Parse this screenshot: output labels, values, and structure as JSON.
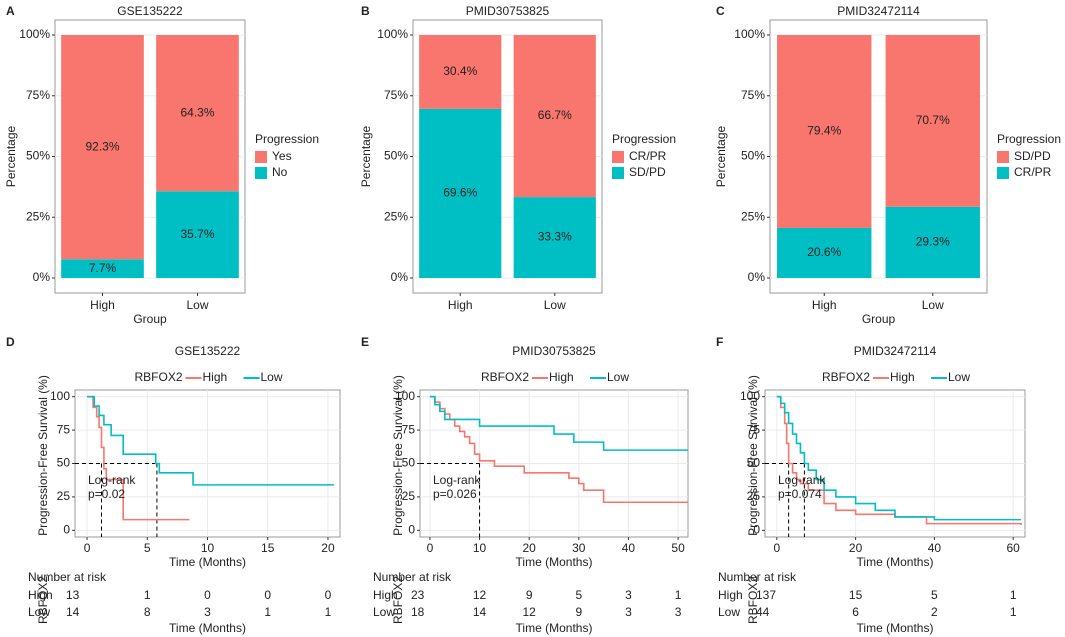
{
  "chart_data": [
    {
      "type": "bar",
      "panel": "A",
      "title": "GSE135222",
      "categories": [
        "High",
        "Low"
      ],
      "series": [
        {
          "name": "Yes",
          "color": "#F8766D",
          "values": [
            92.3,
            64.3
          ],
          "value_labels": [
            "92.3%",
            "64.3%"
          ]
        },
        {
          "name": "No",
          "color": "#00BFC4",
          "values": [
            7.7,
            35.7
          ],
          "value_labels": [
            "7.7%",
            "35.7%"
          ]
        }
      ],
      "legend_title": "Progression",
      "xlabel": "Group",
      "ylabel": "Percentage",
      "ylim": [
        0,
        100
      ],
      "yticks": [
        {
          "value": 0,
          "label": "0%"
        },
        {
          "value": 25,
          "label": "25%"
        },
        {
          "value": 50,
          "label": "50%"
        },
        {
          "value": 75,
          "label": "75%"
        },
        {
          "value": 100,
          "label": "100%"
        }
      ],
      "grid": true
    },
    {
      "type": "bar",
      "panel": "B",
      "title": "PMID30753825",
      "categories": [
        "High",
        "Low"
      ],
      "series": [
        {
          "name": "CR/PR",
          "color": "#F8766D",
          "values": [
            30.4,
            66.7
          ],
          "value_labels": [
            "30.4%",
            "66.7%"
          ]
        },
        {
          "name": "SD/PD",
          "color": "#00BFC4",
          "values": [
            69.6,
            33.3
          ],
          "value_labels": [
            "69.6%",
            "33.3%"
          ]
        }
      ],
      "legend_title": "Progression",
      "ylabel": "Percentage",
      "ylim": [
        0,
        100
      ],
      "yticks": [
        {
          "value": 0,
          "label": "0%"
        },
        {
          "value": 25,
          "label": "25%"
        },
        {
          "value": 50,
          "label": "50%"
        },
        {
          "value": 75,
          "label": "75%"
        },
        {
          "value": 100,
          "label": "100%"
        }
      ],
      "grid": true
    },
    {
      "type": "bar",
      "panel": "C",
      "title": "PMID32472114",
      "categories": [
        "High",
        "Low"
      ],
      "series": [
        {
          "name": "SD/PD",
          "color": "#F8766D",
          "values": [
            79.4,
            70.7
          ],
          "value_labels": [
            "79.4%",
            "70.7%"
          ]
        },
        {
          "name": "CR/PR",
          "color": "#00BFC4",
          "values": [
            20.6,
            29.3
          ],
          "value_labels": [
            "20.6%",
            "29.3%"
          ]
        }
      ],
      "legend_title": "Progression",
      "xlabel": "Group",
      "ylabel": "Percentage",
      "ylim": [
        0,
        100
      ],
      "yticks": [
        {
          "value": 0,
          "label": "0%"
        },
        {
          "value": 25,
          "label": "25%"
        },
        {
          "value": 50,
          "label": "50%"
        },
        {
          "value": 75,
          "label": "75%"
        },
        {
          "value": 100,
          "label": "100%"
        }
      ],
      "grid": true
    },
    {
      "type": "km",
      "panel": "D",
      "title": "GSE135222",
      "legend_title": "RBFOX2",
      "series": [
        {
          "name": "High",
          "color": "#F8766D",
          "x": [
            0,
            0.5,
            0.8,
            1.0,
            1.2,
            1.4,
            1.6,
            3.0,
            8.5
          ],
          "values": [
            100,
            92,
            85,
            77,
            62,
            46,
            38,
            8,
            8
          ]
        },
        {
          "name": "Low",
          "color": "#00BFC4",
          "x": [
            0,
            0.6,
            1.0,
            1.4,
            2.0,
            3.0,
            5.7,
            6.0,
            8.8,
            20.5
          ],
          "values": [
            100,
            93,
            86,
            79,
            71,
            57,
            50,
            43,
            34,
            34
          ]
        }
      ],
      "medians": [
        1.2,
        5.8
      ],
      "annotation": [
        "Log-rank",
        "p=0.02"
      ],
      "xlabel": "Time (Months)",
      "ylabel": "Progression-Free Survival (%)",
      "xlim": [
        -1,
        21
      ],
      "xticks": [
        0,
        5,
        10,
        15,
        20
      ],
      "ylim": [
        -5,
        105
      ],
      "yticks": [
        0,
        25,
        50,
        75,
        100
      ],
      "grid": true,
      "risk_table": {
        "title": "Number at risk",
        "ylabel": "RBFOX2",
        "xlabel": "Time (Months)",
        "times": [
          0,
          5,
          10,
          15,
          20
        ],
        "rows": [
          {
            "name": "High",
            "color": "#E8197A",
            "values": [
              13,
              1,
              0,
              0,
              0
            ]
          },
          {
            "name": "Low",
            "color": "#35C3E3",
            "values": [
              14,
              8,
              3,
              1,
              1
            ]
          }
        ]
      }
    },
    {
      "type": "km",
      "panel": "E",
      "title": "PMID30753825",
      "legend_title": "RBFOX2",
      "series": [
        {
          "name": "High",
          "color": "#F8766D",
          "x": [
            0,
            1,
            2,
            3,
            4,
            5,
            6,
            7,
            8,
            9,
            10,
            13,
            19,
            28,
            30,
            31,
            35,
            52
          ],
          "values": [
            100,
            96,
            91,
            87,
            83,
            78,
            74,
            70,
            65,
            57,
            52,
            48,
            43,
            39,
            35,
            30,
            21,
            21
          ]
        },
        {
          "name": "Low",
          "color": "#00BFC4",
          "x": [
            0,
            1,
            2,
            3,
            10,
            25,
            29,
            35,
            52
          ],
          "values": [
            100,
            94,
            89,
            83,
            78,
            72,
            66,
            60,
            60
          ]
        }
      ],
      "medians": [
        10
      ],
      "annotation": [
        "Log-rank",
        "p=0.026"
      ],
      "xlabel": "Time (Months)",
      "ylabel": "Progression-Free Survival (%)",
      "xlim": [
        -2,
        52
      ],
      "xticks": [
        0,
        10,
        20,
        30,
        40,
        50
      ],
      "ylim": [
        -5,
        105
      ],
      "yticks": [
        0,
        25,
        50,
        75,
        100
      ],
      "grid": true,
      "risk_table": {
        "title": "Number at risk",
        "ylabel": "RBFOX2",
        "xlabel": "Time (Months)",
        "times": [
          0,
          10,
          20,
          30,
          40,
          50
        ],
        "rows": [
          {
            "name": "High",
            "color": "#E8197A",
            "values": [
              23,
              12,
              9,
              5,
              3,
              1
            ]
          },
          {
            "name": "Low",
            "color": "#35C3E3",
            "values": [
              18,
              14,
              12,
              9,
              3,
              3
            ]
          }
        ]
      }
    },
    {
      "type": "km",
      "panel": "F",
      "title": "PMID32472114",
      "legend_title": "RBFOX2",
      "series": [
        {
          "name": "High",
          "color": "#F8766D",
          "x": [
            0,
            1,
            2,
            2.5,
            3,
            4,
            5,
            6,
            8,
            12,
            15,
            20,
            30,
            38,
            62
          ],
          "values": [
            100,
            92,
            80,
            65,
            50,
            43,
            38,
            35,
            30,
            20,
            15,
            12,
            10,
            5,
            4
          ]
        },
        {
          "name": "Low",
          "color": "#00BFC4",
          "x": [
            0,
            1,
            2,
            3,
            4,
            5,
            6,
            7,
            8,
            10,
            12,
            15,
            20,
            25,
            30,
            40,
            62
          ],
          "values": [
            100,
            95,
            88,
            80,
            72,
            65,
            58,
            50,
            45,
            38,
            30,
            25,
            20,
            15,
            10,
            8,
            8
          ]
        }
      ],
      "medians": [
        3,
        7
      ],
      "annotation": [
        "Log-rank",
        "p=0.074"
      ],
      "xlabel": "Time (Months)",
      "ylabel": "Progression-Free Survival (%)",
      "xlim": [
        -3,
        63
      ],
      "xticks": [
        0,
        20,
        40,
        60
      ],
      "ylim": [
        -5,
        105
      ],
      "yticks": [
        0,
        25,
        50,
        75,
        100
      ],
      "grid": true,
      "risk_table": {
        "title": "Number at risk",
        "ylabel": "RBFOX2",
        "xlabel": "Time (Months)",
        "times": [
          0,
          20,
          40,
          60
        ],
        "rows": [
          {
            "name": "High",
            "color": "#E8197A",
            "values": [
              137,
              15,
              5,
              1
            ]
          },
          {
            "name": "Low",
            "color": "#35C3E3",
            "values": [
              44,
              6,
              2,
              1
            ]
          }
        ]
      }
    }
  ]
}
